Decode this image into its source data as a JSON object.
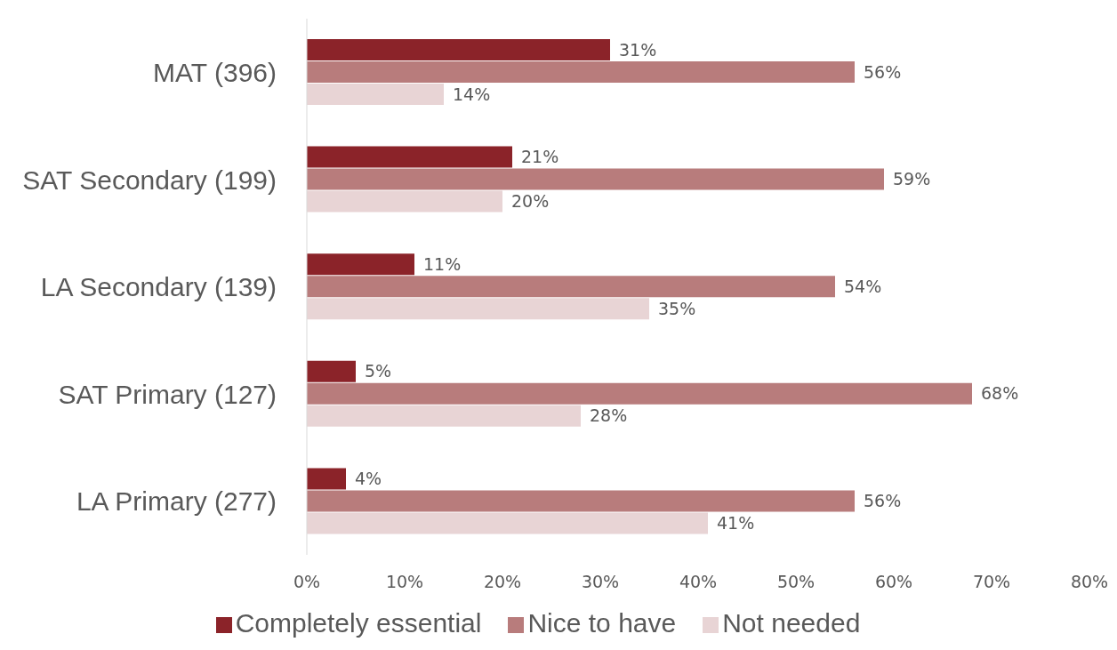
{
  "chart_data": {
    "type": "bar",
    "orientation": "horizontal",
    "categories": [
      "MAT (396)",
      "SAT Secondary (199)",
      "LA Secondary (139)",
      "SAT Primary (127)",
      "LA Primary (277)"
    ],
    "series": [
      {
        "name": "Completely essential",
        "color": "#8b2329",
        "values": [
          31,
          21,
          11,
          5,
          4
        ],
        "value_labels": [
          "31%",
          "21%",
          "11%",
          "5%",
          "4%"
        ]
      },
      {
        "name": "Nice to have",
        "color": "#b87c7c",
        "values": [
          56,
          59,
          54,
          68,
          56
        ],
        "value_labels": [
          "56%",
          "59%",
          "54%",
          "68%",
          "56%"
        ]
      },
      {
        "name": "Not needed",
        "color": "#e8d4d5",
        "values": [
          14,
          20,
          35,
          28,
          41
        ],
        "value_labels": [
          "14%",
          "20%",
          "35%",
          "28%",
          "41%"
        ]
      }
    ],
    "xlim": [
      0,
      80
    ],
    "xticks": [
      {
        "value": 0,
        "label": "0%"
      },
      {
        "value": 10,
        "label": "10%"
      },
      {
        "value": 20,
        "label": "20%"
      },
      {
        "value": 30,
        "label": "30%"
      },
      {
        "value": 40,
        "label": "40%"
      },
      {
        "value": 50,
        "label": "50%"
      },
      {
        "value": 60,
        "label": "60%"
      },
      {
        "value": 70,
        "label": "70%"
      },
      {
        "value": 80,
        "label": "80%"
      }
    ],
    "grid": false,
    "legend": "bottom"
  }
}
